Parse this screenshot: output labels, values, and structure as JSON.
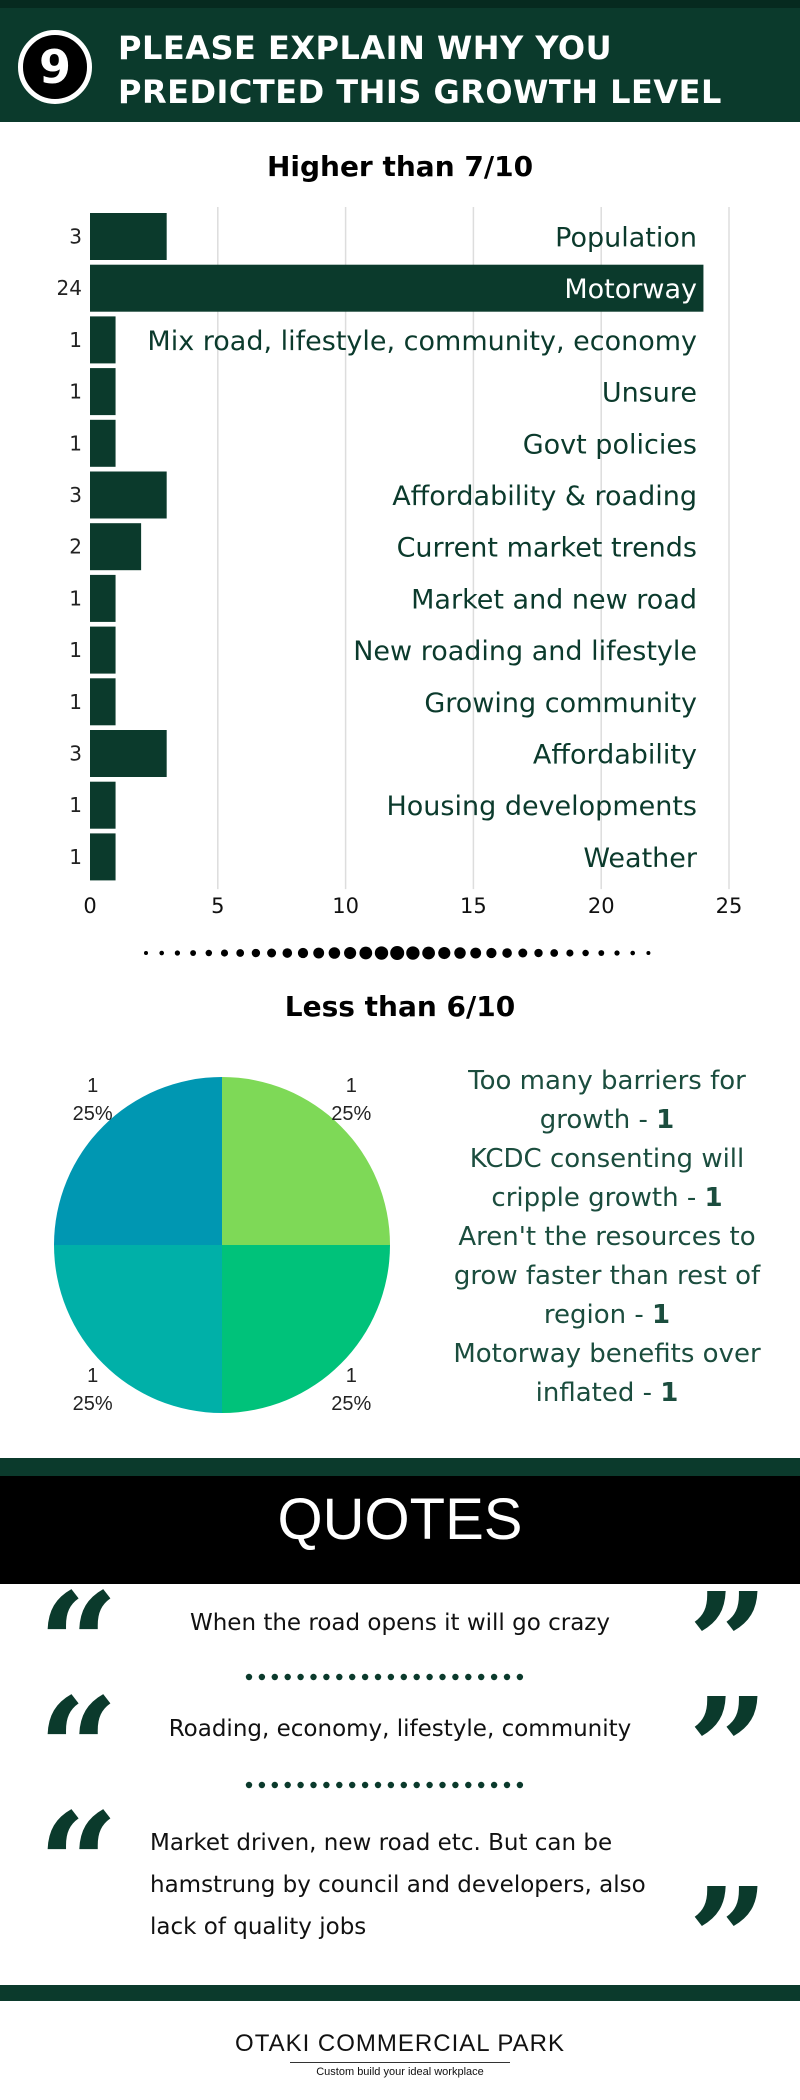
{
  "header": {
    "number": "9",
    "title_line1": "PLEASE EXPLAIN WHY YOU",
    "title_line2": "PREDICTED THIS GROWTH LEVEL"
  },
  "section1": {
    "title": "Higher than 7/10"
  },
  "section2": {
    "title": "Less than 6/10"
  },
  "chart_data": [
    {
      "type": "bar",
      "orientation": "horizontal",
      "title": "Higher than 7/10",
      "categories": [
        "Population",
        "Motorway",
        "Mix road, lifestyle, community, economy",
        "Unsure",
        "Govt policies",
        "Affordability & roading",
        "Current market trends",
        "Market and new road",
        "New roading and lifestyle",
        "Growing community",
        "Affordability",
        "Housing developments",
        "Weather"
      ],
      "values": [
        3,
        24,
        1,
        1,
        1,
        3,
        2,
        1,
        1,
        1,
        3,
        1,
        1
      ],
      "xlim": [
        0,
        25
      ],
      "xticks": [
        0,
        5,
        10,
        15,
        20,
        25
      ],
      "grid": true,
      "colors": {
        "bar": "#0b3a2c",
        "label_inside_dark": "#ffffff",
        "label": "#0b3a2c",
        "grid": "#dddddd"
      }
    },
    {
      "type": "pie",
      "title": "Less than 6/10",
      "slices": [
        {
          "label": "Too many barriers for growth",
          "value": 1,
          "percent": "25%",
          "color": "#7ed957"
        },
        {
          "label": "KCDC consenting will cripple growth",
          "value": 1,
          "percent": "25%",
          "color": "#00c27a"
        },
        {
          "label": "Aren't the resources to grow faster than rest of region",
          "value": 1,
          "percent": "25%",
          "color": "#00b0a8"
        },
        {
          "label": "Motorway benefits over inflated",
          "value": 1,
          "percent": "25%",
          "color": "#0097b2"
        }
      ],
      "legend": [
        {
          "text": "Too many barriers for growth - ",
          "count": "1"
        },
        {
          "text": "KCDC consenting will cripple growth - ",
          "count": "1"
        },
        {
          "text": "Aren't the resources to grow faster than rest of region - ",
          "count": "1"
        },
        {
          "text": "Motorway benefits over inflated - ",
          "count": "1"
        }
      ]
    }
  ],
  "quotes": {
    "heading": "QUOTES",
    "items": [
      "When the road opens it will go crazy",
      "Roading, economy, lifestyle, community",
      "Market driven, new road etc. But can be hamstrung by council and developers, also lack of quality jobs"
    ],
    "open_icon": "open-quote-icon",
    "close_icon": "close-quote-icon"
  },
  "footer": {
    "name": "OTAKI COMMERCIAL PARK",
    "tagline": "Custom build your ideal workplace"
  }
}
